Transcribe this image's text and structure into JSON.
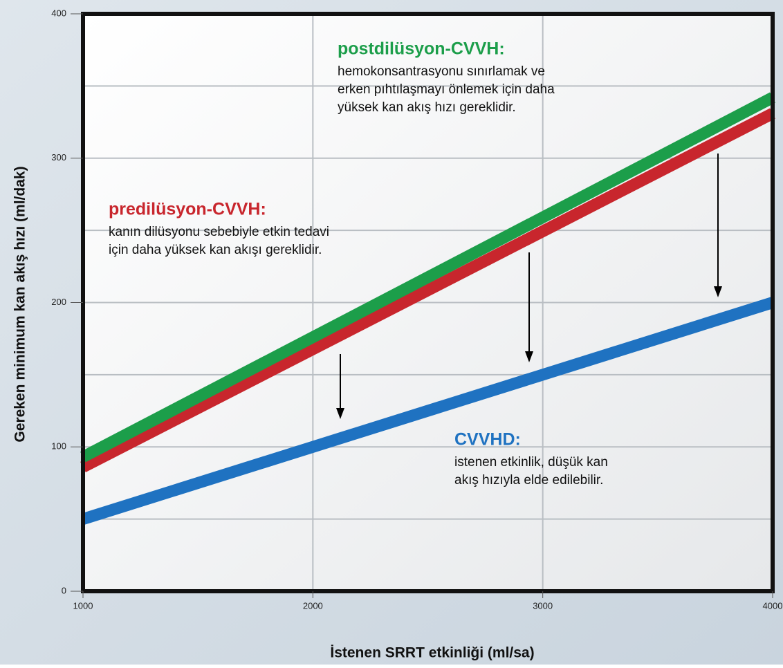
{
  "chart_data": {
    "type": "line",
    "xlabel": "İstenen SRRT etkinliği (ml/sa)",
    "ylabel": "Gereken minimum kan akış hızı (ml/dak)",
    "x": [
      1000,
      4000
    ],
    "series": [
      {
        "name": "CVVHD",
        "color": "#1f72c1",
        "values": [
          50,
          200
        ]
      },
      {
        "name": "predilüsyon-CVVH",
        "color": "#c8262d",
        "values": [
          86,
          331
        ]
      },
      {
        "name": "postdilüsyon-CVVH",
        "color": "#1c9e4a",
        "values": [
          93,
          342
        ]
      }
    ],
    "xlim": [
      1000,
      4000
    ],
    "xticks": [
      1000,
      2000,
      3000,
      4000
    ],
    "ylim": [
      0,
      400
    ],
    "yticks": [
      0,
      100,
      200,
      300,
      400
    ],
    "grid": true,
    "annotations": [
      {
        "title": "postdilüsyon-CVVH:",
        "color": "#1c9e4a",
        "lines": [
          "hemokonsantrasyonu sınırlamak ve",
          "erken pıhtılaşmayı önlemek için daha",
          "yüksek kan akış hızı gereklidir."
        ]
      },
      {
        "title": "predilüsyon-CVVH:",
        "color": "#c8262d",
        "lines": [
          "kanın dilüsyonu sebebiyle etkin tedavi",
          "için daha yüksek kan akışı gereklidir."
        ]
      },
      {
        "title": "CVVHD:",
        "color": "#1f72c1",
        "lines": [
          "istenen etkinlik, düşük kan",
          "akış hızıyla elde edilebilir."
        ]
      }
    ]
  }
}
